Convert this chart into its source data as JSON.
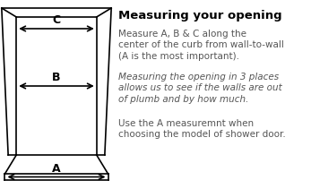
{
  "background_color": "#ffffff",
  "title": "Measuring your opening",
  "title_fontsize": 9.5,
  "title_bold": true,
  "text1": "Measure A, B & C along the\ncenter of the curb from wall-to-wall\n(A is the most important).",
  "text2": "Measuring the opening in 3 places\nallows us to see if the walls are out\nof plumb and by how much.",
  "text3": "Use the A measuremnt when\nchoosing the model of shower door.",
  "text_fontsize": 7.5,
  "text_italic_fontsize": 7.5,
  "label_A": "A",
  "label_B": "B",
  "label_C": "C",
  "label_fontsize": 9,
  "diagram_color": "#000000",
  "text_color": "#555555",
  "title_color": "#000000"
}
